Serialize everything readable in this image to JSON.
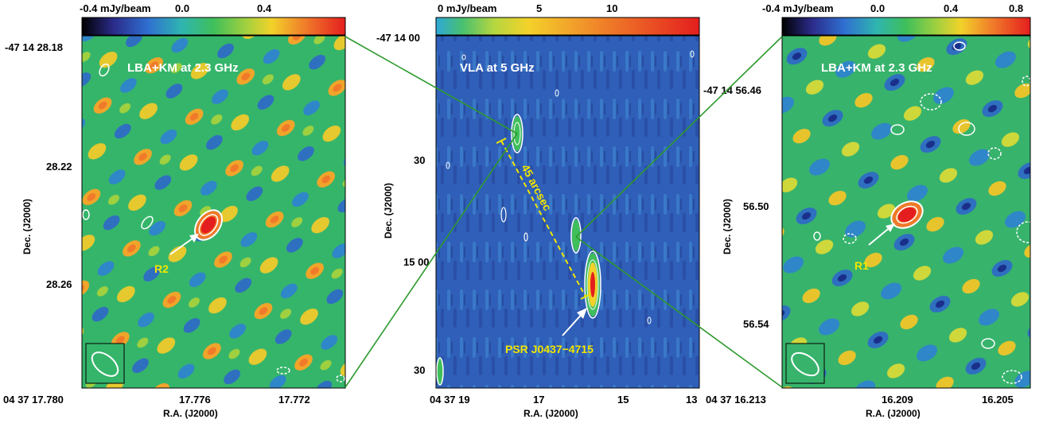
{
  "colors": {
    "background_green": "#35b56a",
    "vla_blue": "#2f5fb8",
    "annotation_yellow": "#f2e600",
    "contour_white": "#ffffff",
    "link_green": "#2e9a2e"
  },
  "left_panel": {
    "colorbar": {
      "labels": [
        "-0.4 mJy/beam",
        "0.0",
        "0.4"
      ]
    },
    "title": "LBA+KM at 2.3 GHz",
    "dec_ticks": [
      "-47 14 28.18",
      "28.22",
      "28.26"
    ],
    "ra_ticks": [
      "04 37 17.780",
      "17.776",
      "17.772"
    ],
    "ylabel": "Dec. (J2000)",
    "xlabel": "R.A. (J2000)",
    "source_label": "R2"
  },
  "middle_panel": {
    "colorbar": {
      "labels": [
        "0 mJy/beam",
        "5",
        "10"
      ]
    },
    "title": "VLA at 5 GHz",
    "dec_ticks": [
      "-47 14 00",
      "30",
      "15 00",
      "30"
    ],
    "ra_ticks": [
      "04 37 19",
      "17",
      "15",
      "13"
    ],
    "ylabel": "Dec. (J2000)",
    "xlabel": "R.A. (J2000)",
    "separation_label": "45 arcsec",
    "pulsar_label": "PSR  J0437−4715"
  },
  "right_panel": {
    "colorbar": {
      "labels": [
        "-0.4 mJy/beam",
        "0.0",
        "0.4",
        "0.8"
      ]
    },
    "title": "LBA+KM at 2.3 GHz",
    "dec_ticks": [
      "-47 14 56.46",
      "56.50",
      "56.54"
    ],
    "ra_ticks": [
      "04 37 16.213",
      "16.209",
      "16.205"
    ],
    "ylabel": "Dec. (J2000)",
    "xlabel": "R.A. (J2000)",
    "source_label": "R1"
  }
}
